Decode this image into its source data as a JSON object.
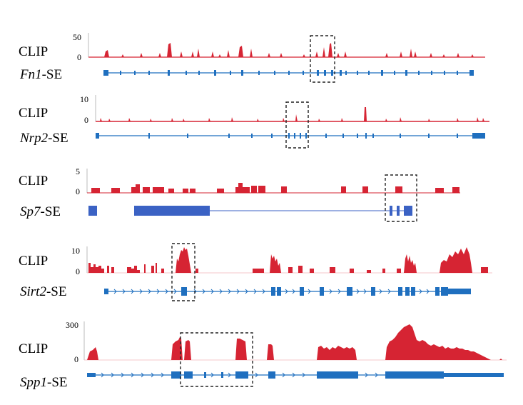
{
  "panels": [
    {
      "id": "fn1",
      "track_label": "CLIP",
      "gene_italic": "Fn1",
      "gene_suffix": "-SE",
      "y_max_label": "50",
      "y_min_label": "0",
      "colors": {
        "clip": "#d62433",
        "gene": "#1f6fbf"
      }
    },
    {
      "id": "nrp2",
      "track_label": "CLIP",
      "gene_italic": "Nrp2",
      "gene_suffix": "-SE",
      "y_max_label": "10",
      "y_min_label": "0",
      "colors": {
        "clip": "#d62433",
        "gene": "#1f6fbf"
      }
    },
    {
      "id": "sp7",
      "track_label": "CLIP",
      "gene_italic": "Sp7",
      "gene_suffix": "-SE",
      "y_max_label": "5",
      "y_min_label": "0",
      "colors": {
        "clip": "#d62433",
        "gene": "#3b62c4"
      }
    },
    {
      "id": "sirt2",
      "track_label": "CLIP",
      "gene_italic": "Sirt2",
      "gene_suffix": "-SE",
      "y_max_label": "10",
      "y_min_label": "0",
      "colors": {
        "clip": "#d62433",
        "gene": "#1f6fbf"
      }
    },
    {
      "id": "spp1",
      "track_label": "CLIP",
      "gene_italic": "Spp1",
      "gene_suffix": "-SE",
      "y_max_label": "300",
      "y_min_label": "0",
      "colors": {
        "clip": "#d62433",
        "gene": "#1f6fbf"
      }
    }
  ]
}
